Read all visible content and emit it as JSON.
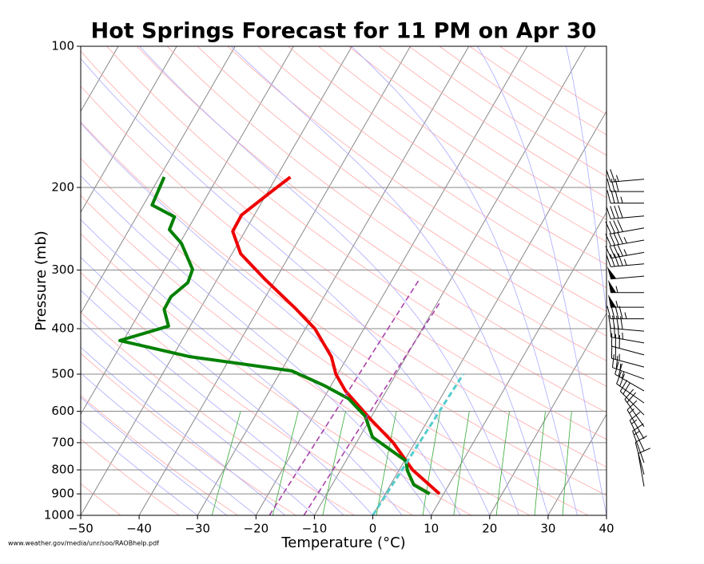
{
  "chart_data": {
    "type": "skewt",
    "title": "Hot Springs Forecast for 11 PM on Apr 30",
    "x_label": "Temperature ($^\\circ$C)",
    "x_label_display": "Temperature (°C)",
    "y_label": "Pressure (mb)",
    "source": "www.weather.gov/media/unr/soo/RAOBhelp.pdf",
    "xlim": [
      -50,
      40
    ],
    "xticks": [
      {
        "value": -50,
        "label": "−50"
      },
      {
        "value": -40,
        "label": "−40"
      },
      {
        "value": -30,
        "label": "−30"
      },
      {
        "value": -20,
        "label": "−20"
      },
      {
        "value": -10,
        "label": "−10"
      },
      0,
      10,
      20,
      30,
      40
    ],
    "ylim": [
      1000,
      100
    ],
    "yticks": [
      100,
      200,
      300,
      400,
      500,
      600,
      700,
      800,
      900,
      1000
    ],
    "log_y": true,
    "grid": true,
    "series": [
      {
        "color": "#ee0000",
        "width": 4,
        "dash": false,
        "pressure": [
          900,
          800,
          700,
          625,
          543,
          500,
          459,
          400,
          363,
          314,
          277,
          248,
          229,
          204,
          190
        ],
        "temperature": [
          9.3,
          2.3,
          -3.7,
          -9.8,
          -17,
          -20.3,
          -22.8,
          -28.4,
          -33.6,
          -41.8,
          -48.5,
          -52.1,
          -52.2,
          -49.4,
          -47.6
        ]
      },
      {
        "color": "#008000",
        "width": 4,
        "dash": false,
        "pressure": [
          900,
          861,
          803,
          766,
          728,
          681,
          615,
          564,
          528,
          492,
          459,
          424,
          395,
          364,
          342,
          319,
          299,
          263,
          246,
          231,
          218,
          190
        ],
        "temperature": [
          7.6,
          4,
          1.5,
          0.3,
          -3.2,
          -7.8,
          -11.1,
          -15.7,
          -21.3,
          -28.2,
          -47,
          -60.6,
          -53.7,
          -56.1,
          -56.2,
          -54.7,
          -55.2,
          -59.7,
          -63.1,
          -63.5,
          -68.5,
          -69.2
        ]
      },
      {
        "color": "#55cccc",
        "width": 3,
        "dash": true,
        "pressure": [
          1000,
          500
        ],
        "temperature": [
          0,
          1.5
        ]
      },
      {
        "color": "#aa44aa",
        "width": 1.6,
        "dash": true,
        "pressure": [
          1000,
          314
        ],
        "temperature": [
          -17.7,
          -15.4
        ]
      },
      {
        "color": "#aa44aa",
        "width": 1.6,
        "dash": true,
        "pressure": [
          1000,
          353
        ],
        "temperature": [
          -11.8,
          -9.6
        ]
      }
    ],
    "winds": {
      "pressure": [
        192,
        204,
        216,
        230,
        244,
        259,
        275,
        291,
        309,
        335,
        360,
        381,
        405,
        429,
        455,
        483,
        512,
        543,
        576,
        611,
        647,
        687,
        728,
        772,
        819,
        868
      ],
      "speed": [
        25,
        30,
        35,
        40,
        40,
        45,
        45,
        45,
        50,
        55,
        55,
        45,
        40,
        35,
        30,
        25,
        25,
        25,
        20,
        20,
        20,
        15,
        15,
        15,
        10,
        10
      ],
      "direction": [
        265,
        270,
        270,
        265,
        260,
        260,
        260,
        265,
        265,
        270,
        270,
        270,
        275,
        280,
        285,
        285,
        290,
        300,
        305,
        315,
        325,
        330,
        335,
        340,
        345,
        350
      ]
    }
  }
}
